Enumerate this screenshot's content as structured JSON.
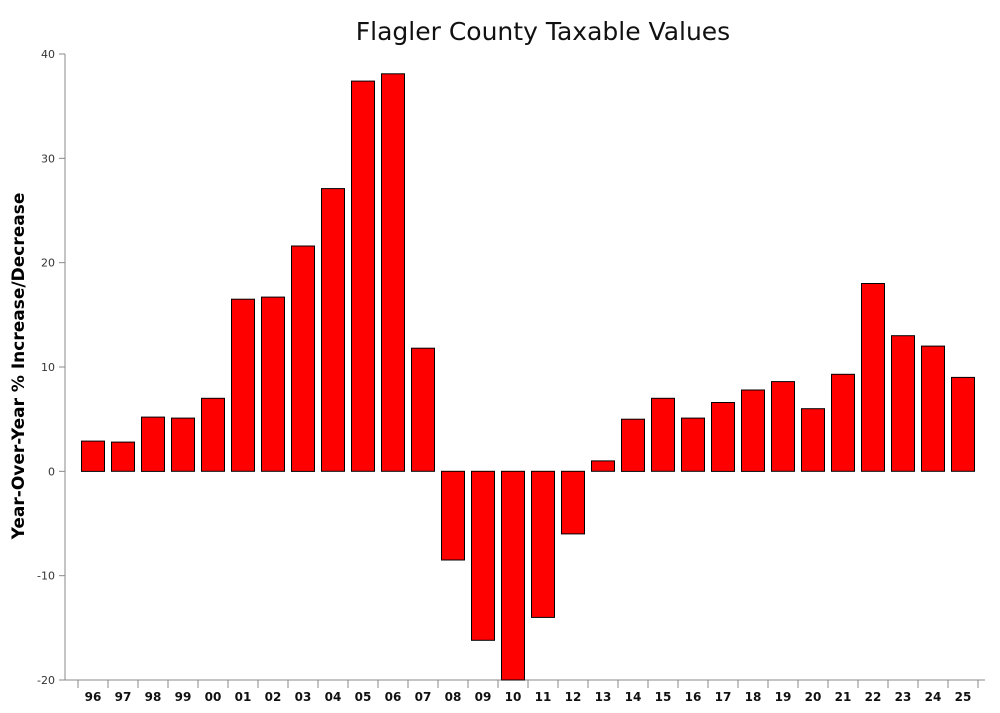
{
  "chart_data": {
    "type": "bar",
    "title": "Flagler County Taxable Values",
    "xlabel": "",
    "ylabel": "Year-Over-Year % Increase/Decrease",
    "categories": [
      "96",
      "97",
      "98",
      "99",
      "00",
      "01",
      "02",
      "03",
      "04",
      "05",
      "06",
      "07",
      "08",
      "09",
      "10",
      "11",
      "12",
      "13",
      "14",
      "15",
      "16",
      "17",
      "18",
      "19",
      "20",
      "21",
      "22",
      "23",
      "24",
      "25"
    ],
    "values": [
      2.9,
      2.8,
      5.2,
      5.1,
      7.0,
      16.5,
      16.7,
      21.6,
      27.1,
      37.4,
      38.1,
      11.8,
      -8.5,
      -16.2,
      -20.0,
      -14.0,
      -6.0,
      1.0,
      5.0,
      7.0,
      5.1,
      6.6,
      7.8,
      8.6,
      6.0,
      9.3,
      18.0,
      13.0,
      12.0,
      9.0
    ],
    "yticks": [
      40,
      30,
      20,
      10,
      0,
      -10,
      -20
    ],
    "ylim": [
      -20,
      40
    ],
    "grid": false,
    "legend": "none",
    "bar_color": "#ff0000",
    "bar_stroke": "#000000"
  }
}
